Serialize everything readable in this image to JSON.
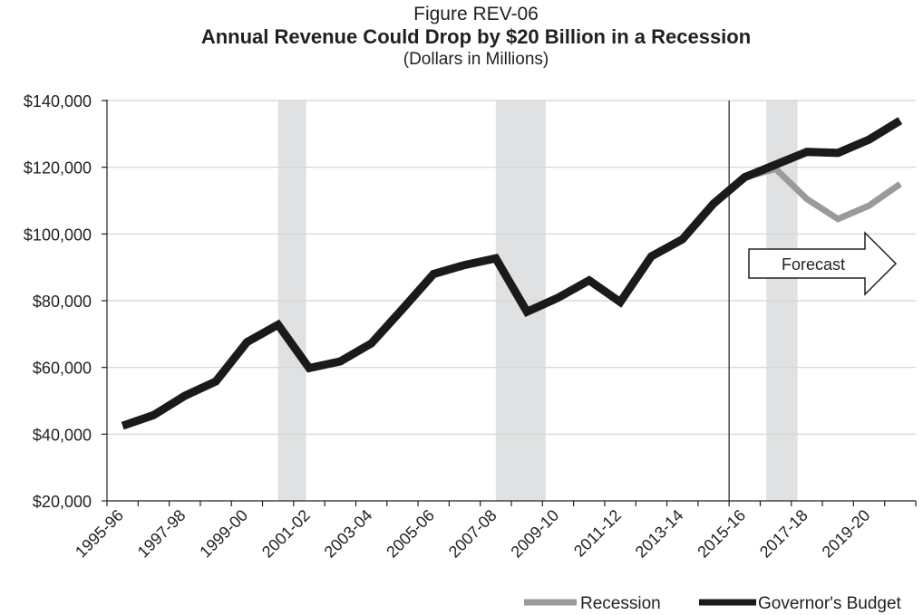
{
  "figure_label": "Figure REV-06",
  "title": "Annual Revenue Could Drop by $20 Billion in a Recession",
  "subtitle": "(Dollars in Millions)",
  "forecast_label": "Forecast",
  "chart_data": {
    "type": "line",
    "title": "Annual Revenue Could Drop by $20 Billion in a Recession",
    "subtitle": "(Dollars in Millions)",
    "categories": [
      "1995-96",
      "1996-97",
      "1997-98",
      "1998-99",
      "1999-00",
      "2000-01",
      "2001-02",
      "2002-03",
      "2003-04",
      "2004-05",
      "2005-06",
      "2006-07",
      "2007-08",
      "2008-09",
      "2009-10",
      "2010-11",
      "2011-12",
      "2012-13",
      "2013-14",
      "2014-15",
      "2015-16",
      "2016-17",
      "2017-18",
      "2018-19",
      "2019-20",
      "2020-21"
    ],
    "x_tick_labels": [
      "1995-96",
      "1997-98",
      "1999-00",
      "2001-02",
      "2003-04",
      "2005-06",
      "2007-08",
      "2009-10",
      "2011-12",
      "2013-14",
      "2015-16",
      "2017-18",
      "2019-20"
    ],
    "ylim": [
      20000,
      140000
    ],
    "y_ticks": [
      20000,
      40000,
      60000,
      80000,
      100000,
      120000,
      140000
    ],
    "y_tick_labels": [
      "$20,000",
      "$40,000",
      "$60,000",
      "$80,000",
      "$100,000",
      "$120,000",
      "$140,000"
    ],
    "grid": true,
    "legend_position": "bottom-right",
    "forecast_divider_after": "2014-15",
    "recession_bands": [
      {
        "start": 5.5,
        "end": 6.4
      },
      {
        "start": 12.5,
        "end": 14.1
      },
      {
        "start": 21.2,
        "end": 22.2
      }
    ],
    "series": [
      {
        "name": "Recession",
        "color": "#9a9a9a",
        "values": [
          null,
          null,
          null,
          null,
          null,
          null,
          null,
          null,
          null,
          null,
          null,
          null,
          null,
          null,
          null,
          null,
          null,
          null,
          null,
          null,
          117000,
          119500,
          110500,
          104500,
          108500,
          115000
        ]
      },
      {
        "name": "Governor's Budget",
        "color": "#1a1a1a",
        "values": [
          42500,
          45700,
          51500,
          55800,
          67600,
          72800,
          59800,
          61800,
          67200,
          77500,
          88000,
          90700,
          92700,
          76700,
          80900,
          86100,
          79600,
          93300,
          98400,
          109100,
          117000,
          120800,
          124600,
          124300,
          128300,
          134000
        ]
      }
    ]
  }
}
